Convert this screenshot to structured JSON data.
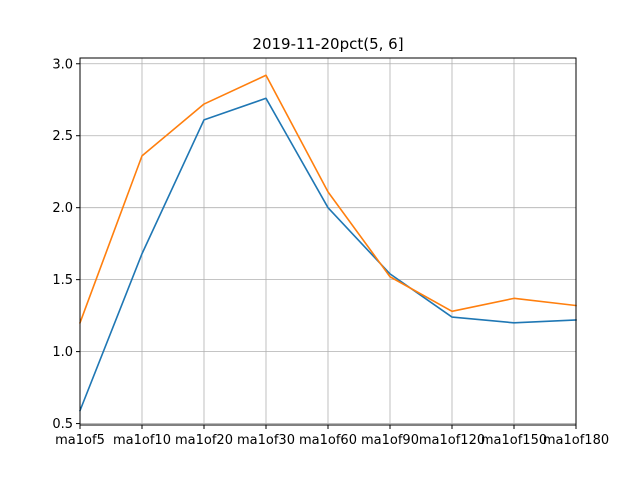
{
  "chart_data": {
    "type": "line",
    "title": "2019-11-20pct(5, 6]",
    "xlabel": "",
    "ylabel": "",
    "categories": [
      "ma1of5",
      "ma1of10",
      "ma1of20",
      "ma1of30",
      "ma1of60",
      "ma1of90",
      "ma1of120",
      "ma1of150",
      "ma1of180"
    ],
    "ylim": [
      0.49,
      3.04
    ],
    "yticks": [
      0.5,
      1.0,
      1.5,
      2.0,
      2.5,
      3.0
    ],
    "ytick_labels": [
      "0.5",
      "1.0",
      "1.5",
      "2.0",
      "2.5",
      "3.0"
    ],
    "grid": true,
    "series": [
      {
        "color": "#1f77b4",
        "values": [
          0.59,
          1.68,
          2.61,
          2.76,
          2.0,
          1.54,
          1.24,
          1.2,
          1.22
        ]
      },
      {
        "color": "#ff7f0e",
        "values": [
          1.2,
          2.36,
          2.72,
          2.92,
          2.11,
          1.52,
          1.28,
          1.37,
          1.32
        ]
      }
    ]
  }
}
